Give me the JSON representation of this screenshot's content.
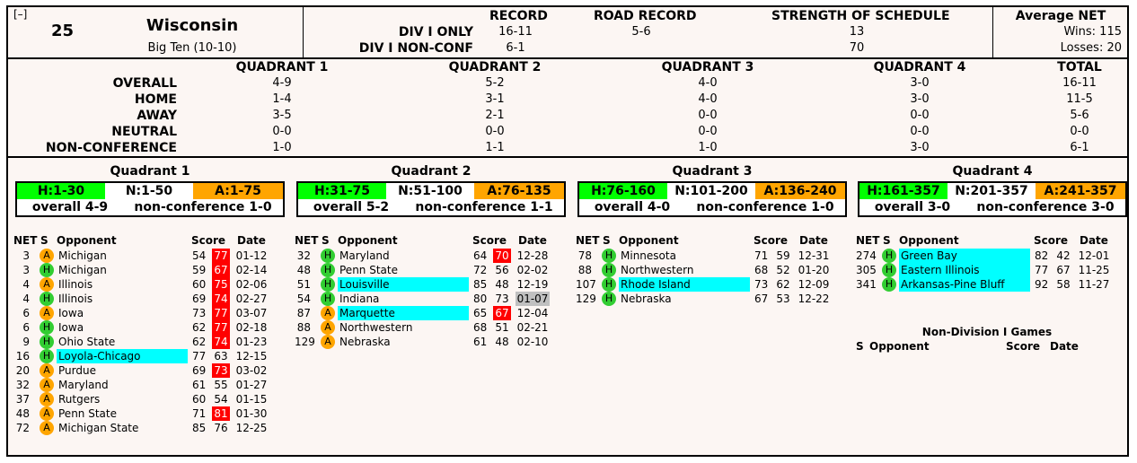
{
  "collapse_toggle": "[–]",
  "team": {
    "rank": "25",
    "name": "Wisconsin",
    "conference": "Big Ten (10-10)"
  },
  "summary": {
    "headers": {
      "record": "RECORD",
      "road": "ROAD RECORD",
      "sos": "STRENGTH OF SCHEDULE",
      "avg_net": "Average NET"
    },
    "div1_label": "DIV I ONLY",
    "nonconf_label": "DIV I NON-CONF",
    "div1": {
      "record": "16-11",
      "road": "5-6",
      "sos": "13"
    },
    "nonconf": {
      "record": "6-1",
      "sos": "70"
    },
    "avg_wins": "Wins: 115",
    "avg_losses": "Losses: 20"
  },
  "quadrant_table": {
    "headers": [
      "QUADRANT 1",
      "QUADRANT 2",
      "QUADRANT 3",
      "QUADRANT 4",
      "TOTAL"
    ],
    "rows": [
      {
        "label": "OVERALL",
        "values": [
          "4-9",
          "5-2",
          "4-0",
          "3-0",
          "16-11"
        ]
      },
      {
        "label": "HOME",
        "values": [
          "1-4",
          "3-1",
          "4-0",
          "3-0",
          "11-5"
        ]
      },
      {
        "label": "AWAY",
        "values": [
          "3-5",
          "2-1",
          "0-0",
          "0-0",
          "5-6"
        ]
      },
      {
        "label": "NEUTRAL",
        "values": [
          "0-0",
          "0-0",
          "0-0",
          "0-0",
          "0-0"
        ]
      },
      {
        "label": "NON-CONFERENCE",
        "values": [
          "1-0",
          "1-1",
          "1-0",
          "3-0",
          "6-1"
        ]
      }
    ]
  },
  "quadrants": [
    {
      "title": "Quadrant 1",
      "h": "H:1-30",
      "n": "N:1-50",
      "a": "A:1-75",
      "overall": "overall 4-9",
      "nonconf": "non-conference 1-0",
      "games": [
        {
          "net": "3",
          "loc": "A",
          "opp": "Michigan",
          "s1": "54",
          "s2": "77",
          "date": "01-12",
          "opp_hl": "",
          "s2_hl": "red",
          "date_hl": ""
        },
        {
          "net": "3",
          "loc": "H",
          "opp": "Michigan",
          "s1": "59",
          "s2": "67",
          "date": "02-14",
          "opp_hl": "",
          "s2_hl": "red",
          "date_hl": ""
        },
        {
          "net": "4",
          "loc": "A",
          "opp": "Illinois",
          "s1": "60",
          "s2": "75",
          "date": "02-06",
          "opp_hl": "",
          "s2_hl": "red",
          "date_hl": ""
        },
        {
          "net": "4",
          "loc": "H",
          "opp": "Illinois",
          "s1": "69",
          "s2": "74",
          "date": "02-27",
          "opp_hl": "",
          "s2_hl": "red",
          "date_hl": ""
        },
        {
          "net": "6",
          "loc": "A",
          "opp": "Iowa",
          "s1": "73",
          "s2": "77",
          "date": "03-07",
          "opp_hl": "",
          "s2_hl": "red",
          "date_hl": ""
        },
        {
          "net": "6",
          "loc": "H",
          "opp": "Iowa",
          "s1": "62",
          "s2": "77",
          "date": "02-18",
          "opp_hl": "",
          "s2_hl": "red",
          "date_hl": ""
        },
        {
          "net": "9",
          "loc": "H",
          "opp": "Ohio State",
          "s1": "62",
          "s2": "74",
          "date": "01-23",
          "opp_hl": "",
          "s2_hl": "red",
          "date_hl": ""
        },
        {
          "net": "16",
          "loc": "H",
          "opp": "Loyola-Chicago",
          "s1": "77",
          "s2": "63",
          "date": "12-15",
          "opp_hl": "cyan",
          "s2_hl": "",
          "date_hl": ""
        },
        {
          "net": "20",
          "loc": "A",
          "opp": "Purdue",
          "s1": "69",
          "s2": "73",
          "date": "03-02",
          "opp_hl": "",
          "s2_hl": "red",
          "date_hl": ""
        },
        {
          "net": "32",
          "loc": "A",
          "opp": "Maryland",
          "s1": "61",
          "s2": "55",
          "date": "01-27",
          "opp_hl": "",
          "s2_hl": "",
          "date_hl": ""
        },
        {
          "net": "37",
          "loc": "A",
          "opp": "Rutgers",
          "s1": "60",
          "s2": "54",
          "date": "01-15",
          "opp_hl": "",
          "s2_hl": "",
          "date_hl": ""
        },
        {
          "net": "48",
          "loc": "A",
          "opp": "Penn State",
          "s1": "71",
          "s2": "81",
          "date": "01-30",
          "opp_hl": "",
          "s2_hl": "red",
          "date_hl": ""
        },
        {
          "net": "72",
          "loc": "A",
          "opp": "Michigan State",
          "s1": "85",
          "s2": "76",
          "date": "12-25",
          "opp_hl": "",
          "s2_hl": "",
          "date_hl": ""
        }
      ]
    },
    {
      "title": "Quadrant 2",
      "h": "H:31-75",
      "n": "N:51-100",
      "a": "A:76-135",
      "overall": "overall 5-2",
      "nonconf": "non-conference 1-1",
      "games": [
        {
          "net": "32",
          "loc": "H",
          "opp": "Maryland",
          "s1": "64",
          "s2": "70",
          "date": "12-28",
          "opp_hl": "",
          "s2_hl": "red",
          "date_hl": ""
        },
        {
          "net": "48",
          "loc": "H",
          "opp": "Penn State",
          "s1": "72",
          "s2": "56",
          "date": "02-02",
          "opp_hl": "",
          "s2_hl": "",
          "date_hl": ""
        },
        {
          "net": "51",
          "loc": "H",
          "opp": "Louisville",
          "s1": "85",
          "s2": "48",
          "date": "12-19",
          "opp_hl": "cyan",
          "s2_hl": "",
          "date_hl": ""
        },
        {
          "net": "54",
          "loc": "H",
          "opp": "Indiana",
          "s1": "80",
          "s2": "73",
          "date": "01-07",
          "opp_hl": "",
          "s2_hl": "",
          "date_hl": "gray"
        },
        {
          "net": "87",
          "loc": "A",
          "opp": "Marquette",
          "s1": "65",
          "s2": "67",
          "date": "12-04",
          "opp_hl": "cyan",
          "s2_hl": "red",
          "date_hl": ""
        },
        {
          "net": "88",
          "loc": "A",
          "opp": "Northwestern",
          "s1": "68",
          "s2": "51",
          "date": "02-21",
          "opp_hl": "",
          "s2_hl": "",
          "date_hl": ""
        },
        {
          "net": "129",
          "loc": "A",
          "opp": "Nebraska",
          "s1": "61",
          "s2": "48",
          "date": "02-10",
          "opp_hl": "",
          "s2_hl": "",
          "date_hl": ""
        }
      ]
    },
    {
      "title": "Quadrant 3",
      "h": "H:76-160",
      "n": "N:101-200",
      "a": "A:136-240",
      "overall": "overall 4-0",
      "nonconf": "non-conference 1-0",
      "games": [
        {
          "net": "78",
          "loc": "H",
          "opp": "Minnesota",
          "s1": "71",
          "s2": "59",
          "date": "12-31",
          "opp_hl": "",
          "s2_hl": "",
          "date_hl": ""
        },
        {
          "net": "88",
          "loc": "H",
          "opp": "Northwestern",
          "s1": "68",
          "s2": "52",
          "date": "01-20",
          "opp_hl": "",
          "s2_hl": "",
          "date_hl": ""
        },
        {
          "net": "107",
          "loc": "H",
          "opp": "Rhode Island",
          "s1": "73",
          "s2": "62",
          "date": "12-09",
          "opp_hl": "cyan",
          "s2_hl": "",
          "date_hl": ""
        },
        {
          "net": "129",
          "loc": "H",
          "opp": "Nebraska",
          "s1": "67",
          "s2": "53",
          "date": "12-22",
          "opp_hl": "",
          "s2_hl": "",
          "date_hl": ""
        }
      ]
    },
    {
      "title": "Quadrant 4",
      "h": "H:161-357",
      "n": "N:201-357",
      "a": "A:241-357",
      "overall": "overall 3-0",
      "nonconf": "non-conference 3-0",
      "games": [
        {
          "net": "274",
          "loc": "H",
          "opp": "Green Bay",
          "s1": "82",
          "s2": "42",
          "date": "12-01",
          "opp_hl": "cyan",
          "s2_hl": "",
          "date_hl": ""
        },
        {
          "net": "305",
          "loc": "H",
          "opp": "Eastern Illinois",
          "s1": "77",
          "s2": "67",
          "date": "11-25",
          "opp_hl": "cyan",
          "s2_hl": "",
          "date_hl": ""
        },
        {
          "net": "341",
          "loc": "H",
          "opp": "Arkansas-Pine Bluff",
          "s1": "92",
          "s2": "58",
          "date": "11-27",
          "opp_hl": "cyan",
          "s2_hl": "",
          "date_hl": ""
        }
      ]
    }
  ],
  "games_header": {
    "net": "NET",
    "s": "S",
    "opp": "Opponent",
    "score": "Score",
    "date": "Date"
  },
  "non_div": {
    "title": "Non-Division I Games",
    "s": "S",
    "opp": "Opponent",
    "score": "Score",
    "date": "Date"
  },
  "colors": {
    "green": "#00ff00",
    "orange": "#ffa500",
    "cyan": "#00ffff",
    "red": "#ff0000",
    "gray": "#c0c0c0",
    "home_circle": "#32cd32",
    "away_circle": "#ffa500"
  }
}
